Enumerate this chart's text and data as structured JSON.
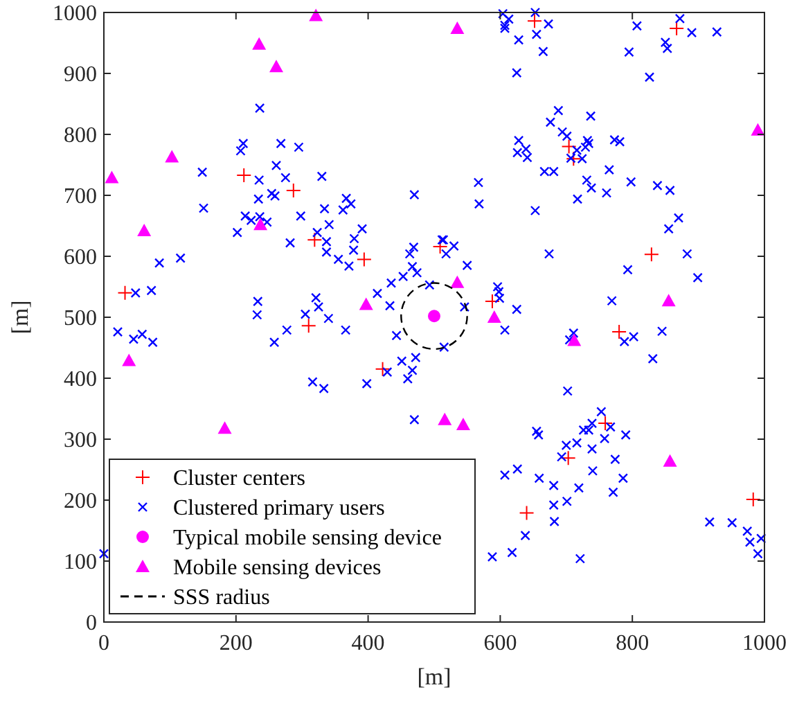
{
  "chart_data": {
    "type": "scatter",
    "xlabel": "[m]",
    "ylabel": "[m]",
    "xlim": [
      0,
      1000
    ],
    "ylim": [
      0,
      1000
    ],
    "xticks": [
      0,
      200,
      400,
      600,
      800,
      1000
    ],
    "yticks": [
      0,
      100,
      200,
      300,
      400,
      500,
      600,
      700,
      800,
      900,
      1000
    ],
    "grid": false,
    "legend": "bottom left",
    "series": [
      {
        "name": "Cluster centers",
        "color": "#ff0000",
        "marker": "cross",
        "x": [
          32,
          212,
          287,
          319,
          394,
          310,
          509,
          588,
          652,
          867,
          704,
          711,
          829,
          780,
          759,
          703,
          640,
          983,
          422
        ],
        "values": [
          540,
          733,
          708,
          627,
          595,
          486,
          616,
          526,
          986,
          974,
          780,
          760,
          603,
          476,
          326,
          269,
          179,
          201,
          415
        ]
      },
      {
        "name": "Clustered primary users",
        "color": "#0000ff",
        "marker": "x",
        "x": [
          236,
          211,
          207,
          268,
          295,
          149,
          261,
          235,
          275,
          330,
          234,
          254,
          259,
          470,
          367,
          374,
          362,
          151,
          334,
          214,
          223,
          236,
          247,
          298,
          202,
          341,
          391,
          323,
          337,
          337,
          282,
          379,
          378,
          355,
          371,
          469,
          463,
          84,
          116,
          467,
          474,
          453,
          435,
          414,
          493,
          512,
          48,
          72,
          233,
          232,
          321,
          325,
          305,
          340,
          433,
          366,
          277,
          258,
          21,
          45,
          58,
          74,
          443,
          604,
          613,
          607,
          607,
          653,
          673,
          655,
          628,
          665,
          807,
          872,
          890,
          928,
          850,
          853,
          795,
          826,
          625,
          688,
          737,
          676,
          694,
          701,
          628,
          626,
          639,
          641,
          732,
          734,
          729,
          716,
          707,
          724,
          773,
          781,
          667,
          681,
          765,
          567,
          568,
          731,
          738,
          761,
          798,
          838,
          857,
          717,
          653,
          870,
          855,
          514,
          530,
          518,
          674,
          883,
          550,
          793,
          899,
          596,
          598,
          599,
          769,
          546,
          625,
          607,
          711,
          705,
          788,
          802,
          845,
          515,
          831,
          702,
          753,
          739,
          734,
          726,
          767,
          758,
          790,
          655,
          658,
          700,
          716,
          739,
          693,
          774,
          607,
          626,
          740,
          659,
          786,
          681,
          719,
          681,
          701,
          771,
          682,
          638,
          917,
          951,
          974,
          978,
          995,
          990,
          588,
          618,
          721,
          451,
          429,
          472,
          467,
          460,
          316,
          333,
          398,
          470,
          0
        ],
        "values": [
          843,
          785,
          773,
          785,
          779,
          738,
          749,
          725,
          729,
          731,
          694,
          703,
          699,
          701,
          695,
          686,
          676,
          679,
          678,
          666,
          659,
          665,
          656,
          666,
          639,
          652,
          645,
          639,
          624,
          607,
          622,
          629,
          610,
          595,
          584,
          615,
          604,
          589,
          597,
          583,
          573,
          567,
          556,
          539,
          553,
          627,
          540,
          544,
          526,
          504,
          532,
          517,
          505,
          498,
          519,
          479,
          479,
          459,
          476,
          464,
          472,
          459,
          470,
          998,
          989,
          979,
          974,
          1000,
          981,
          964,
          955,
          936,
          978,
          990,
          967,
          968,
          951,
          941,
          935,
          894,
          901,
          839,
          830,
          820,
          804,
          797,
          790,
          770,
          776,
          762,
          790,
          785,
          779,
          774,
          761,
          760,
          791,
          788,
          739,
          739,
          742,
          721,
          686,
          725,
          712,
          704,
          722,
          716,
          708,
          694,
          675,
          663,
          645,
          627,
          617,
          604,
          604,
          604,
          585,
          578,
          565,
          550,
          542,
          531,
          527,
          517,
          513,
          479,
          474,
          463,
          460,
          468,
          477,
          451,
          432,
          379,
          345,
          326,
          315,
          315,
          320,
          301,
          307,
          313,
          307,
          290,
          294,
          284,
          271,
          267,
          241,
          251,
          248,
          236,
          236,
          224,
          220,
          192,
          198,
          213,
          165,
          142,
          164,
          163,
          149,
          131,
          137,
          112,
          107,
          114,
          104,
          428,
          410,
          434,
          413,
          399,
          394,
          383,
          391,
          332,
          112
        ]
      },
      {
        "name": "Typical mobile sensing device",
        "color": "#ff00ff",
        "marker": "circle",
        "x": [
          500
        ],
        "values": [
          502
        ]
      },
      {
        "name": "Mobile sensing devices",
        "color": "#ff00ff",
        "marker": "triangle",
        "x": [
          321,
          235,
          261,
          103,
          12,
          61,
          237,
          397,
          535,
          990,
          535,
          855,
          591,
          712,
          516,
          544,
          857,
          38,
          183
        ],
        "values": [
          995,
          948,
          911,
          763,
          729,
          642,
          652,
          521,
          974,
          807,
          557,
          527,
          500,
          462,
          332,
          324,
          264,
          429,
          318
        ]
      },
      {
        "name": "SSS radius",
        "type": "line",
        "color": "#000000",
        "line_style": "dashed"
      }
    ]
  }
}
